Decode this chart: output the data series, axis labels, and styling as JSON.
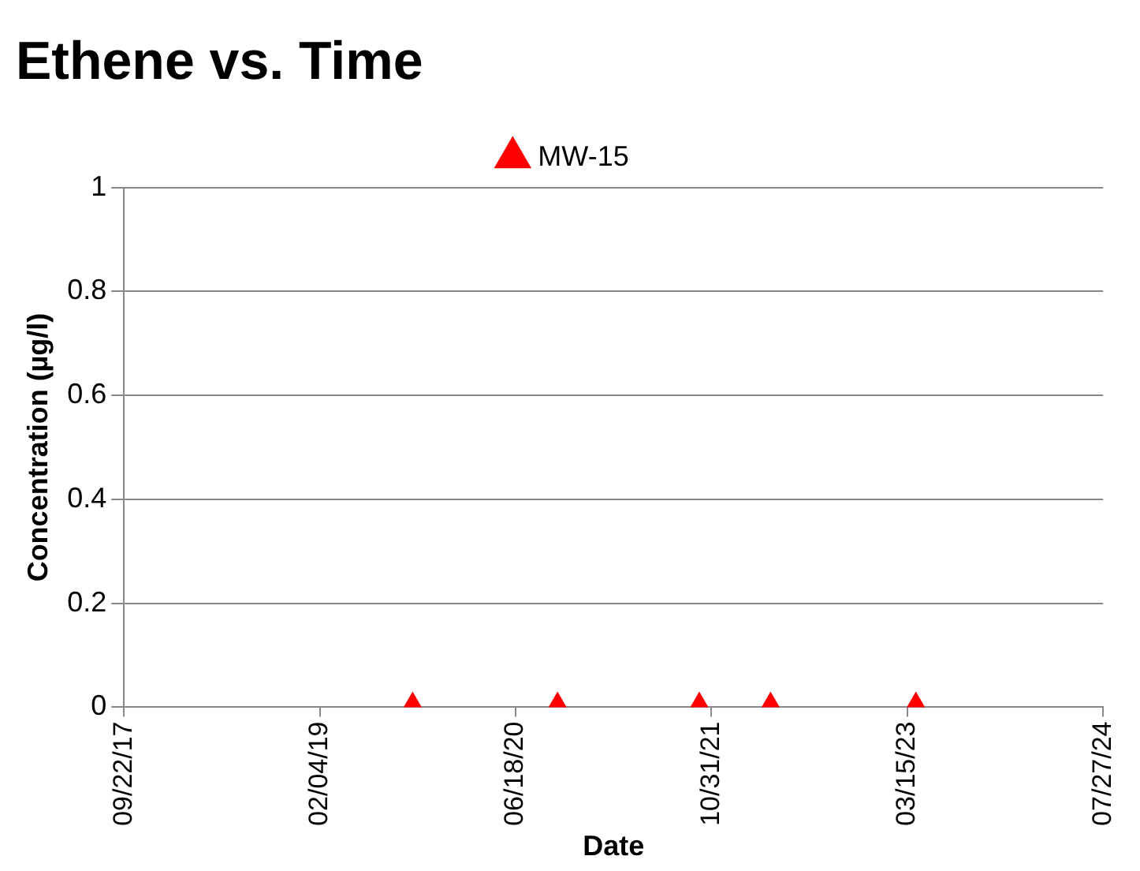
{
  "chart_data": {
    "type": "scatter",
    "title": "Ethene vs. Time",
    "xlabel": "Date",
    "ylabel": "Concentration (µg/l)",
    "x": [
      "2019-09-29",
      "2020-10-03",
      "2021-09-30",
      "2022-03-31",
      "2023-04-06"
    ],
    "series": [
      {
        "name": "MW-15",
        "color": "#ff0000",
        "values": [
          0,
          0,
          0,
          0,
          0
        ]
      }
    ],
    "xlim": [
      "2017-09-22",
      "2024-07-27"
    ],
    "xticks": [
      {
        "value": "2017-09-22",
        "label": "09/22/17"
      },
      {
        "value": "2019-02-04",
        "label": "02/04/19"
      },
      {
        "value": "2020-06-18",
        "label": "06/18/20"
      },
      {
        "value": "2021-10-31",
        "label": "10/31/21"
      },
      {
        "value": "2023-03-15",
        "label": "03/15/23"
      },
      {
        "value": "2024-07-27",
        "label": "07/27/24"
      }
    ],
    "ylim": [
      0,
      1
    ],
    "yticks": [
      0,
      0.2,
      0.4,
      0.6,
      0.8,
      1
    ],
    "grid": "y",
    "legend": "top",
    "marker": "triangle"
  }
}
